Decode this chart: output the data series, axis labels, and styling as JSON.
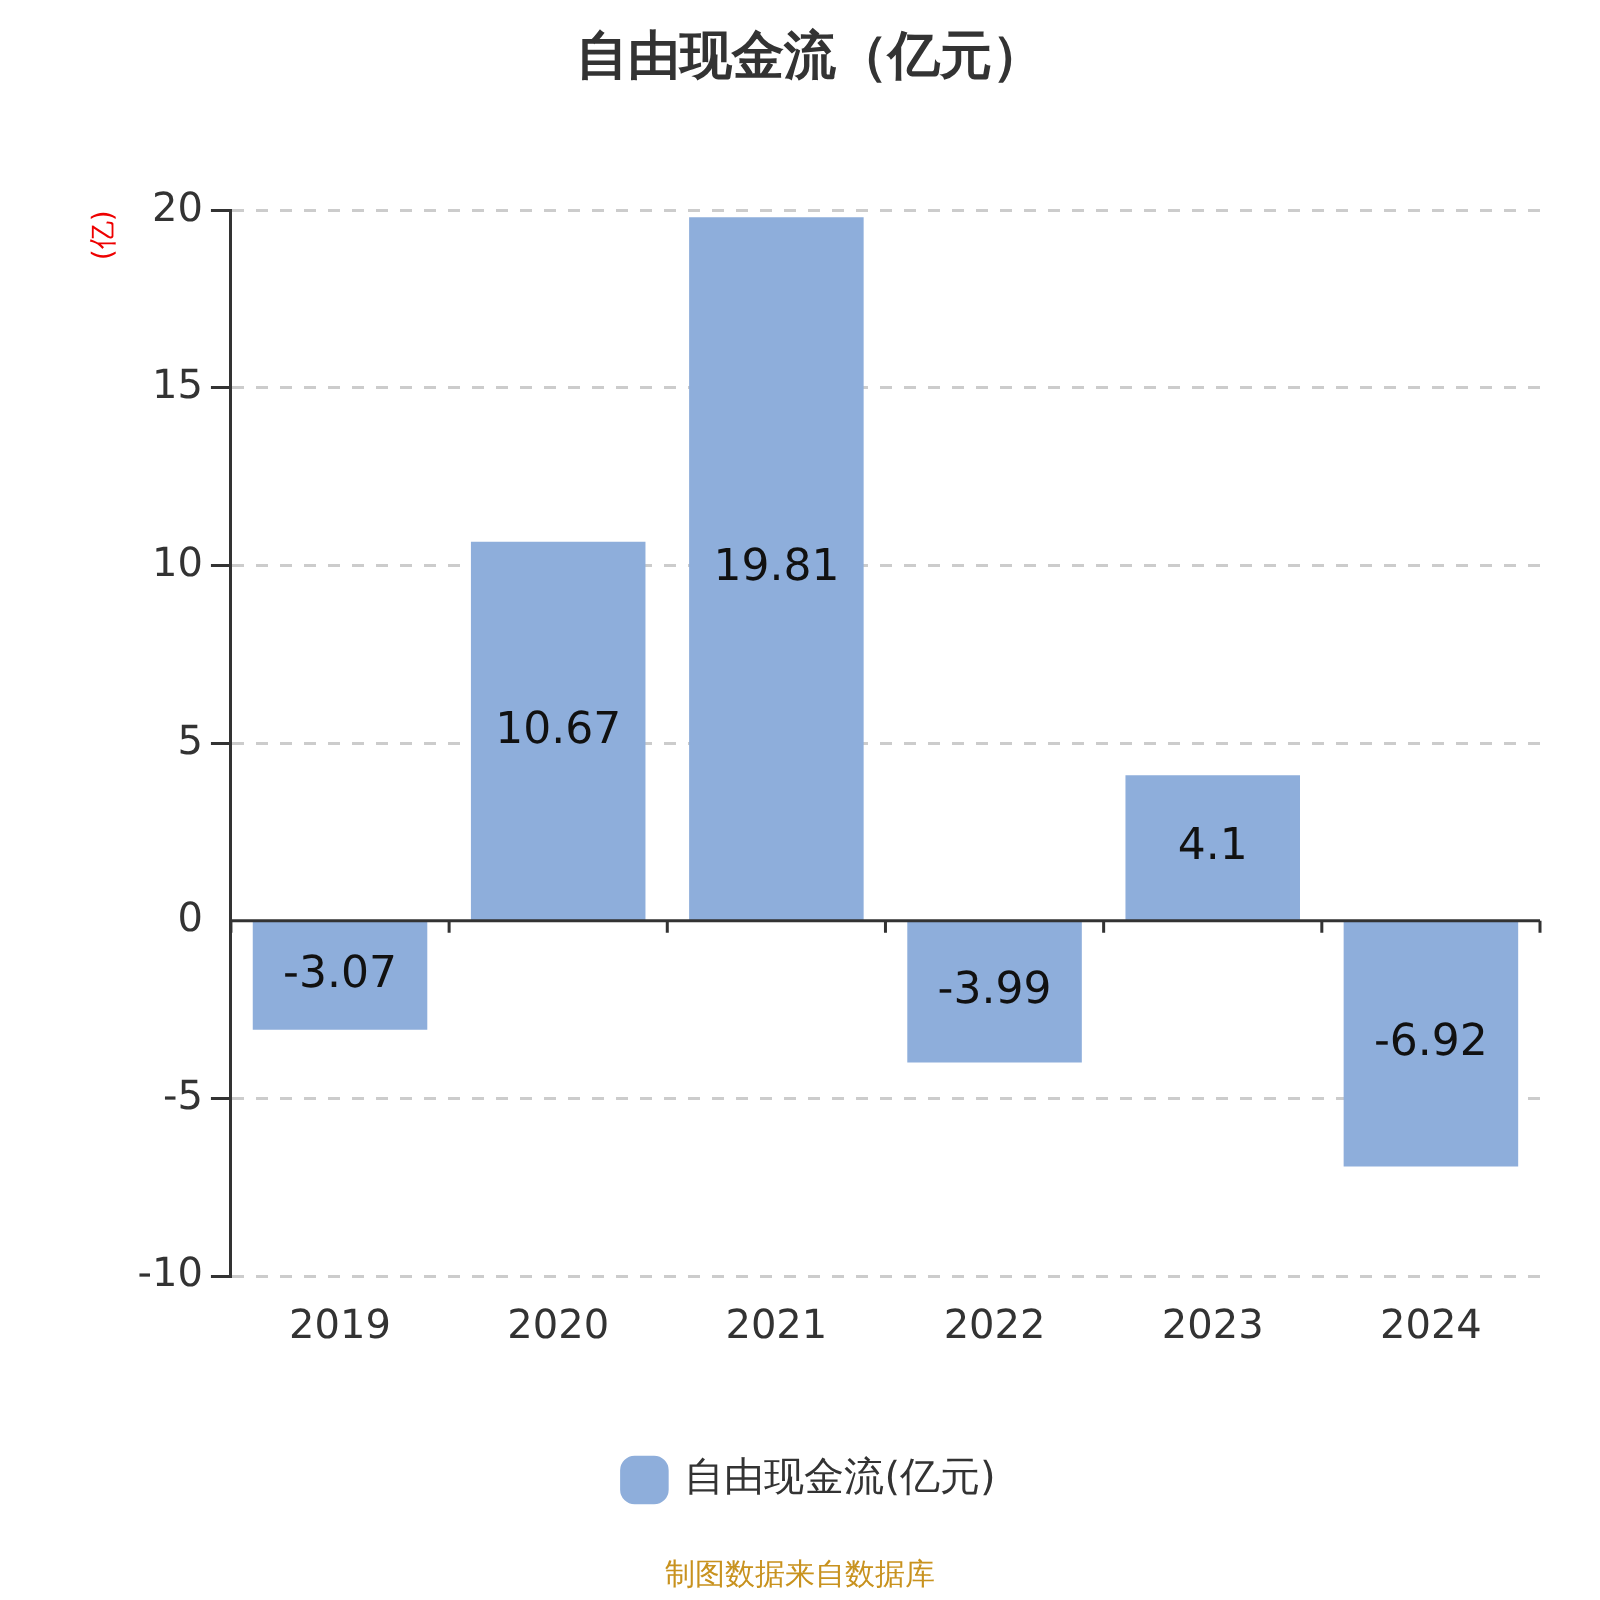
{
  "chart_data": {
    "type": "bar",
    "title": "自由现金流（亿元）",
    "ylabel": "(亿)",
    "categories": [
      "2019",
      "2020",
      "2021",
      "2022",
      "2023",
      "2024"
    ],
    "series": [
      {
        "name": "自由现金流(亿元)",
        "color": "#8eaedb",
        "values": [
          -3.07,
          10.67,
          19.81,
          -3.99,
          4.1,
          -6.92
        ]
      }
    ],
    "ylim": [
      -10,
      20
    ],
    "yticks": [
      -10,
      -5,
      0,
      5,
      10,
      15,
      20
    ],
    "grid": "y",
    "legend": "bottom",
    "data_labels": true,
    "annotations": [
      "制图数据来自数据库"
    ]
  }
}
